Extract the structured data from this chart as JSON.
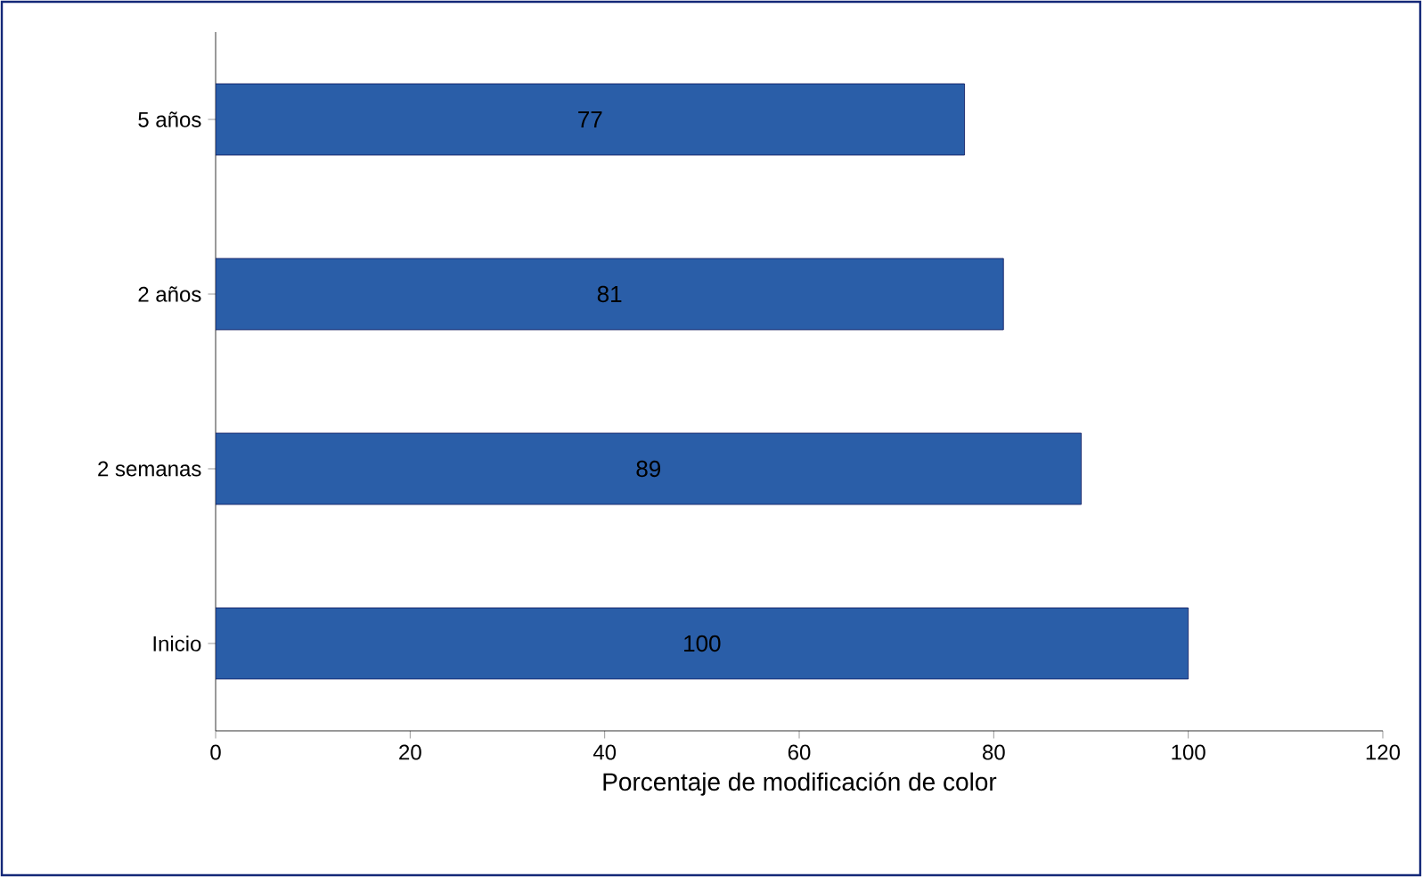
{
  "chart_data": {
    "type": "bar",
    "orientation": "horizontal",
    "xlabel": "Porcentaje de modificación de color",
    "categories": [
      "5 años",
      "2 años",
      "2 semanas",
      "Inicio"
    ],
    "values": [
      77,
      81,
      89,
      100
    ],
    "color": "#2a5ea8",
    "data_labels": true,
    "xlim": [
      0,
      120
    ],
    "xticks": [
      0,
      20,
      40,
      60,
      80,
      100,
      120
    ],
    "grid": false
  }
}
